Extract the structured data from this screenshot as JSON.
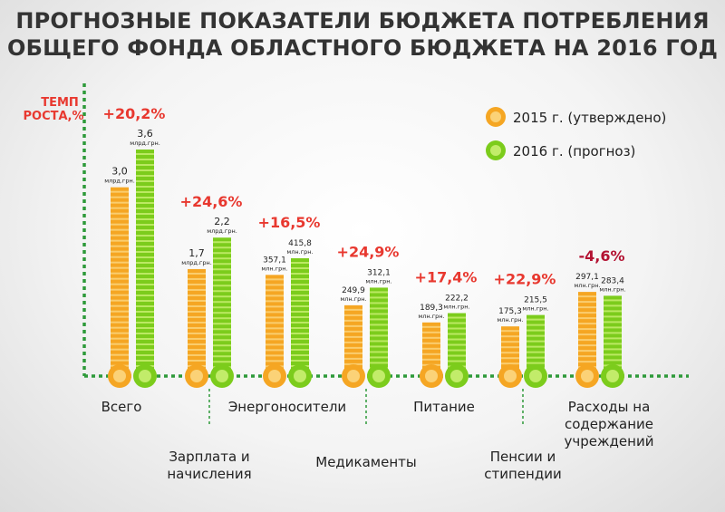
{
  "title_line1": "ПРОГНОЗНЫЕ ПОКАЗАТЕЛИ БЮДЖЕТА ПОТРЕБЛЕНИЯ",
  "title_line2": "ОБЩЕГО ФОНДА ОБЛАСТНОГО БЮДЖЕТА НА 2016 ГОД",
  "colors": {
    "series_2015": "#f5a623",
    "series_2015_light": "#fbd277",
    "series_2016": "#7ccc1c",
    "series_2016_light": "#c2ec6a",
    "growth_positive": "#e8382f",
    "growth_negative": "#b31232",
    "axis": "#2e9a3a",
    "label_text": "#222222"
  },
  "chart_data": {
    "type": "bar",
    "title": "ПРОГНОЗНЫЕ ПОКАЗАТЕЛИ БЮДЖЕТА ПОТРЕБЛЕНИЯ ОБЩЕГО ФОНДА ОБЛАСТНОГО БЮДЖЕТА НА 2016 ГОД",
    "ylabel_line1": "ТЕМП",
    "ylabel_line2": "РОСТА,%",
    "legend_position": "top-right",
    "legend": [
      "2015 г. (утверждено)",
      "2016 г. (прогноз)"
    ],
    "categories": [
      {
        "label_lines": [
          "Всего"
        ],
        "row": "top",
        "v2015": 3.0,
        "v2016": 3.6,
        "l2015": "3,0",
        "l2016": "3,6",
        "unit": "млрд.грн.",
        "growth": "+20,2%"
      },
      {
        "label_lines": [
          "Зарплата и",
          "начисления"
        ],
        "row": "bottom",
        "v2015": 1.7,
        "v2016": 2.2,
        "l2015": "1,7",
        "l2016": "2,2",
        "unit": "млрд.грн.",
        "growth": "+24,6%"
      },
      {
        "label_lines": [
          "Энергоносители"
        ],
        "row": "top",
        "v2015": 357.1,
        "v2016": 415.8,
        "l2015": "357,1",
        "l2016": "415,8",
        "unit": "млн.грн.",
        "growth": "+16,5%"
      },
      {
        "label_lines": [
          "Медикаменты"
        ],
        "row": "bottom",
        "v2015": 249.9,
        "v2016": 312.1,
        "l2015": "249,9",
        "l2016": "312,1",
        "unit": "млн.грн.",
        "growth": "+24,9%"
      },
      {
        "label_lines": [
          "Питание"
        ],
        "row": "top",
        "v2015": 189.3,
        "v2016": 222.2,
        "l2015": "189,3",
        "l2016": "222,2",
        "unit": "млн.грн.",
        "growth": "+17,4%"
      },
      {
        "label_lines": [
          "Пенсии и",
          "стипендии"
        ],
        "row": "bottom",
        "v2015": 175.3,
        "v2016": 215.5,
        "l2015": "175,3",
        "l2016": "215,5",
        "unit": "млн.грн.",
        "growth": "+22,9%"
      },
      {
        "label_lines": [
          "Расходы на",
          "содержание",
          "учреждений"
        ],
        "row": "top",
        "v2015": 297.1,
        "v2016": 283.4,
        "l2015": "297,1",
        "l2016": "283,4",
        "unit": "млн.грн.",
        "growth": "-4,6%"
      }
    ]
  }
}
